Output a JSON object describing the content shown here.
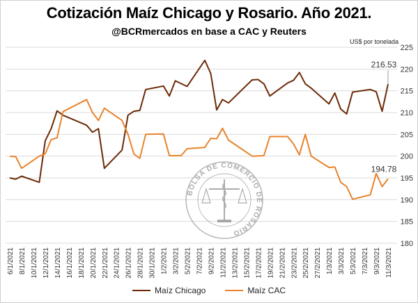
{
  "chart_data": {
    "type": "line",
    "title": "Cotización Maíz Chicago y Rosario. Año 2021.",
    "subtitle": "@BCRmercados en base a CAC y Reuters",
    "ylabel": "US$ por tonelada",
    "ylim": [
      180,
      225
    ],
    "yticks": [
      180,
      185,
      190,
      195,
      200,
      205,
      210,
      215,
      220,
      225
    ],
    "grid": "horizontal",
    "legend_position": "bottom",
    "x_tick_labels": [
      "6/1/2021",
      "8/1/2021",
      "10/1/2021",
      "12/1/2021",
      "14/1/2021",
      "16/1/2021",
      "18/1/2021",
      "20/1/2021",
      "22/1/2021",
      "24/1/2021",
      "26/1/2021",
      "28/1/2021",
      "30/1/2021",
      "1/2/2021",
      "3/2/2021",
      "5/2/2021",
      "7/2/2021",
      "9/2/2021",
      "11/2/2021",
      "13/2/2021",
      "15/2/2021",
      "17/2/2021",
      "19/2/2021",
      "21/2/2021",
      "23/2/2021",
      "25/2/2021",
      "27/2/2021",
      "1/3/2021",
      "3/3/2021",
      "5/3/2021",
      "7/3/2021",
      "9/3/2021",
      "11/3/2021"
    ],
    "series": [
      {
        "name": "Maíz Chicago",
        "color": "#6b2a07",
        "points": [
          [
            "2021-01-06",
            195.0
          ],
          [
            "2021-01-07",
            194.7
          ],
          [
            "2021-01-08",
            195.4
          ],
          [
            "2021-01-11",
            194.0
          ],
          [
            "2021-01-12",
            203.5
          ],
          [
            "2021-01-13",
            206.3
          ],
          [
            "2021-01-14",
            210.4
          ],
          [
            "2021-01-15",
            209.4
          ],
          [
            "2021-01-19",
            207.1
          ],
          [
            "2021-01-20",
            205.5
          ],
          [
            "2021-01-21",
            206.3
          ],
          [
            "2021-01-22",
            197.2
          ],
          [
            "2021-01-25",
            201.4
          ],
          [
            "2021-01-26",
            209.4
          ],
          [
            "2021-01-27",
            210.3
          ],
          [
            "2021-01-28",
            210.5
          ],
          [
            "2021-01-29",
            215.3
          ],
          [
            "2021-02-01",
            216.1
          ],
          [
            "2021-02-02",
            213.8
          ],
          [
            "2021-02-03",
            217.3
          ],
          [
            "2021-02-05",
            216.0
          ],
          [
            "2021-02-08",
            222.0
          ],
          [
            "2021-02-09",
            219.0
          ],
          [
            "2021-02-10",
            210.6
          ],
          [
            "2021-02-11",
            213.0
          ],
          [
            "2021-02-12",
            212.2
          ],
          [
            "2021-02-16",
            217.5
          ],
          [
            "2021-02-17",
            217.6
          ],
          [
            "2021-02-18",
            216.6
          ],
          [
            "2021-02-19",
            213.8
          ],
          [
            "2021-02-22",
            216.8
          ],
          [
            "2021-02-23",
            217.4
          ],
          [
            "2021-02-24",
            219.2
          ],
          [
            "2021-02-25",
            216.6
          ],
          [
            "2021-02-26",
            215.6
          ],
          [
            "2021-03-01",
            212.0
          ],
          [
            "2021-03-02",
            214.5
          ],
          [
            "2021-03-03",
            210.8
          ],
          [
            "2021-03-04",
            209.7
          ],
          [
            "2021-03-05",
            214.7
          ],
          [
            "2021-03-08",
            215.3
          ],
          [
            "2021-03-09",
            214.8
          ],
          [
            "2021-03-10",
            210.3
          ],
          [
            "2021-03-11",
            216.53
          ]
        ],
        "end_label": "216.53"
      },
      {
        "name": "Maíz CAC",
        "color": "#e8832b",
        "points": [
          [
            "2021-01-06",
            200.0
          ],
          [
            "2021-01-07",
            199.9
          ],
          [
            "2021-01-08",
            197.2
          ],
          [
            "2021-01-11",
            200.0
          ],
          [
            "2021-01-12",
            200.5
          ],
          [
            "2021-01-13",
            203.8
          ],
          [
            "2021-01-14",
            204.2
          ],
          [
            "2021-01-15",
            210.2
          ],
          [
            "2021-01-19",
            213.0
          ],
          [
            "2021-01-20",
            210.0
          ],
          [
            "2021-01-21",
            208.2
          ],
          [
            "2021-01-22",
            211.0
          ],
          [
            "2021-01-25",
            208.2
          ],
          [
            "2021-01-26",
            205.0
          ],
          [
            "2021-01-27",
            200.5
          ],
          [
            "2021-01-28",
            199.5
          ],
          [
            "2021-01-29",
            205.0
          ],
          [
            "2021-02-01",
            205.1
          ],
          [
            "2021-02-02",
            200.1
          ],
          [
            "2021-02-04",
            200.1
          ],
          [
            "2021-02-05",
            201.7
          ],
          [
            "2021-02-08",
            202.0
          ],
          [
            "2021-02-09",
            204.1
          ],
          [
            "2021-02-10",
            204.0
          ],
          [
            "2021-02-11",
            206.4
          ],
          [
            "2021-02-12",
            203.7
          ],
          [
            "2021-02-16",
            200.0
          ],
          [
            "2021-02-18",
            200.1
          ],
          [
            "2021-02-19",
            204.5
          ],
          [
            "2021-02-22",
            204.5
          ],
          [
            "2021-02-23",
            202.8
          ],
          [
            "2021-02-24",
            200.3
          ],
          [
            "2021-02-25",
            205.0
          ],
          [
            "2021-02-26",
            200.0
          ],
          [
            "2021-03-01",
            197.4
          ],
          [
            "2021-03-02",
            197.5
          ],
          [
            "2021-03-03",
            194.0
          ],
          [
            "2021-03-04",
            193.0
          ],
          [
            "2021-03-05",
            190.1
          ],
          [
            "2021-03-08",
            191.1
          ],
          [
            "2021-03-09",
            196.0
          ],
          [
            "2021-03-10",
            193.0
          ],
          [
            "2021-03-11",
            194.78
          ]
        ],
        "end_label": "194.78"
      }
    ],
    "watermark": "BOLSA DE COMERCIO DE ROSARIO"
  }
}
